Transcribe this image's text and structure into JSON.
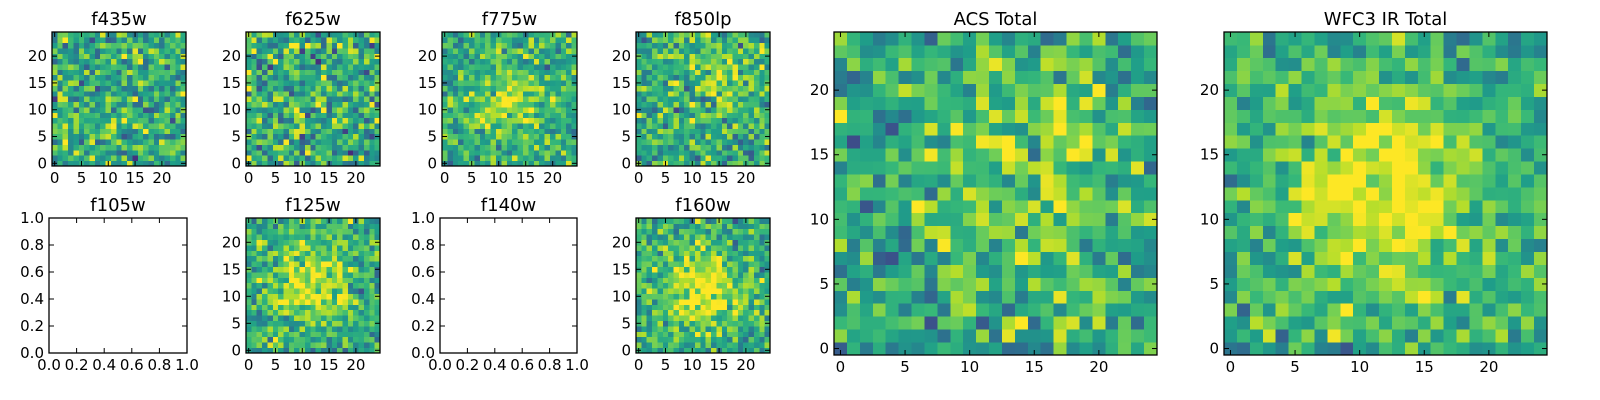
{
  "colormap": "viridis",
  "colors": {
    "background": "#ffffff",
    "frame": "#000000",
    "text": "#000000"
  },
  "chart_data": [
    {
      "type": "heatmap",
      "title": "f435w",
      "empty": false,
      "grid": false,
      "grid_size": 25,
      "tick_values": [
        0,
        5,
        10,
        15,
        20
      ],
      "xlim": [
        -0.5,
        24.5
      ],
      "ylim": [
        -0.5,
        24.5
      ],
      "pattern": "noise",
      "noise": 0.55,
      "peak_center": [
        12,
        12
      ],
      "peak_sigma": 5,
      "peak_amp": 0.0,
      "seed": 11
    },
    {
      "type": "heatmap",
      "title": "f625w",
      "empty": false,
      "grid": false,
      "grid_size": 25,
      "tick_values": [
        0,
        5,
        10,
        15,
        20
      ],
      "xlim": [
        -0.5,
        24.5
      ],
      "ylim": [
        -0.5,
        24.5
      ],
      "pattern": "noise",
      "noise": 0.6,
      "peak_center": [
        12,
        12
      ],
      "peak_sigma": 5,
      "peak_amp": 0.0,
      "seed": 23
    },
    {
      "type": "heatmap",
      "title": "f775w",
      "empty": false,
      "grid": false,
      "grid_size": 25,
      "tick_values": [
        0,
        5,
        10,
        15,
        20
      ],
      "xlim": [
        -0.5,
        24.5
      ],
      "ylim": [
        -0.5,
        24.5
      ],
      "pattern": "noise+source",
      "noise": 0.45,
      "peak_center": [
        12,
        12
      ],
      "peak_sigma": 4.5,
      "peak_amp": 0.25,
      "seed": 37
    },
    {
      "type": "heatmap",
      "title": "f850lp",
      "empty": false,
      "grid": false,
      "grid_size": 25,
      "tick_values": [
        0,
        5,
        10,
        15,
        20
      ],
      "xlim": [
        -0.5,
        24.5
      ],
      "ylim": [
        -0.5,
        24.5
      ],
      "pattern": "noise+source",
      "noise": 0.5,
      "peak_center": [
        17,
        16
      ],
      "peak_sigma": 4,
      "peak_amp": 0.2,
      "seed": 41
    },
    {
      "type": "heatmap",
      "title": "ACS Total",
      "empty": false,
      "grid": false,
      "grid_size": 25,
      "tick_values": [
        0,
        5,
        10,
        15,
        20
      ],
      "xlim": [
        -0.5,
        24.5
      ],
      "ylim": [
        -0.5,
        24.5
      ],
      "pattern": "noise+source",
      "noise": 0.5,
      "peak_center": [
        14,
        13
      ],
      "peak_sigma": 5,
      "peak_amp": 0.18,
      "seed": 53
    },
    {
      "type": "heatmap",
      "title": "f105w",
      "empty": true,
      "grid": false,
      "xlim": [
        0.0,
        1.0
      ],
      "ylim": [
        0.0,
        1.0
      ],
      "x_ticks": [
        "0.0",
        "0.2",
        "0.4",
        "0.6",
        "0.8",
        "1.0"
      ],
      "y_ticks": [
        "0.0",
        "0.2",
        "0.4",
        "0.6",
        "0.8",
        "1.0"
      ]
    },
    {
      "type": "heatmap",
      "title": "f125w",
      "empty": false,
      "grid": false,
      "grid_size": 25,
      "tick_values": [
        0,
        5,
        10,
        15,
        20
      ],
      "xlim": [
        -0.5,
        24.5
      ],
      "ylim": [
        -0.5,
        24.5
      ],
      "pattern": "noise+source",
      "noise": 0.45,
      "peak_center": [
        11,
        13
      ],
      "peak_sigma": 5,
      "peak_amp": 0.35,
      "seed": 67
    },
    {
      "type": "heatmap",
      "title": "f140w",
      "empty": true,
      "grid": false,
      "xlim": [
        0.0,
        1.0
      ],
      "ylim": [
        0.0,
        1.0
      ],
      "x_ticks": [
        "0.0",
        "0.2",
        "0.4",
        "0.6",
        "0.8",
        "1.0"
      ],
      "y_ticks": [
        "0.0",
        "0.2",
        "0.4",
        "0.6",
        "0.8",
        "1.0"
      ]
    },
    {
      "type": "heatmap",
      "title": "f160w",
      "empty": false,
      "grid": false,
      "grid_size": 25,
      "tick_values": [
        0,
        5,
        10,
        15,
        20
      ],
      "xlim": [
        -0.5,
        24.5
      ],
      "ylim": [
        -0.5,
        24.5
      ],
      "pattern": "noise+source",
      "noise": 0.45,
      "peak_center": [
        12,
        11
      ],
      "peak_sigma": 5,
      "peak_amp": 0.35,
      "seed": 79
    },
    {
      "type": "heatmap",
      "title": "WFC3 IR Total",
      "empty": false,
      "grid": false,
      "grid_size": 25,
      "tick_values": [
        0,
        5,
        10,
        15,
        20
      ],
      "xlim": [
        -0.5,
        24.5
      ],
      "ylim": [
        -0.5,
        24.5
      ],
      "pattern": "noise+source",
      "noise": 0.4,
      "peak_center": [
        12,
        12
      ],
      "peak_sigma": 5,
      "peak_amp": 0.4,
      "seed": 97
    }
  ]
}
